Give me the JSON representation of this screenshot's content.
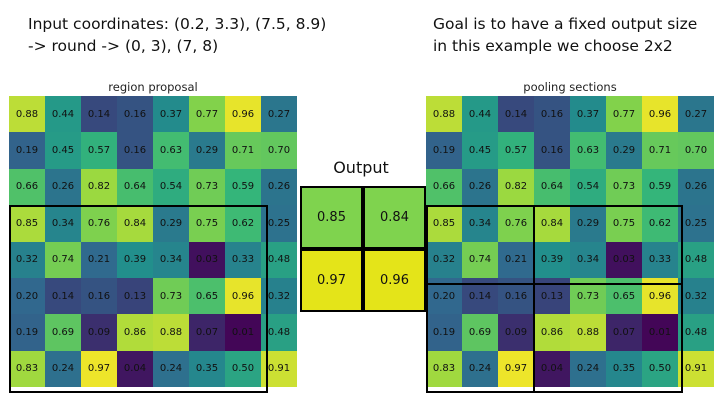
{
  "captions": {
    "left": [
      "Input coordinates: (0.2, 3.3), (7.5, 8.9)",
      "-> round -> (0, 3), (7, 8)"
    ],
    "right": [
      "Goal is to have a fixed output size",
      "in this example we choose 2x2"
    ]
  },
  "left_panel": {
    "title": "region proposal"
  },
  "right_panel": {
    "title": "pooling sections"
  },
  "output": {
    "title": "Output",
    "values": [
      [
        "0.85",
        "0.84"
      ],
      [
        "0.97",
        "0.96"
      ]
    ]
  },
  "grid_values": [
    [
      "0.88",
      "0.44",
      "0.14",
      "0.16",
      "0.37",
      "0.77",
      "0.96",
      "0.27"
    ],
    [
      "0.19",
      "0.45",
      "0.57",
      "0.16",
      "0.63",
      "0.29",
      "0.71",
      "0.70"
    ],
    [
      "0.66",
      "0.26",
      "0.82",
      "0.64",
      "0.54",
      "0.73",
      "0.59",
      "0.26"
    ],
    [
      "0.85",
      "0.34",
      "0.76",
      "0.84",
      "0.29",
      "0.75",
      "0.62",
      "0.25"
    ],
    [
      "0.32",
      "0.74",
      "0.21",
      "0.39",
      "0.34",
      "0.03",
      "0.33",
      "0.48"
    ],
    [
      "0.20",
      "0.14",
      "0.16",
      "0.13",
      "0.73",
      "0.65",
      "0.96",
      "0.32"
    ],
    [
      "0.19",
      "0.69",
      "0.09",
      "0.86",
      "0.88",
      "0.07",
      "0.01",
      "0.48"
    ],
    [
      "0.83",
      "0.24",
      "0.97",
      "0.04",
      "0.24",
      "0.35",
      "0.50",
      "0.91"
    ]
  ],
  "colors": {
    "colormap": [
      "#440154",
      "#31688e",
      "#21918c",
      "#35b779",
      "#90d743",
      "#fde725"
    ],
    "out_high": "#cfe01d",
    "out_low": "#7fd34e",
    "out_yellow": "#e4e419"
  }
}
